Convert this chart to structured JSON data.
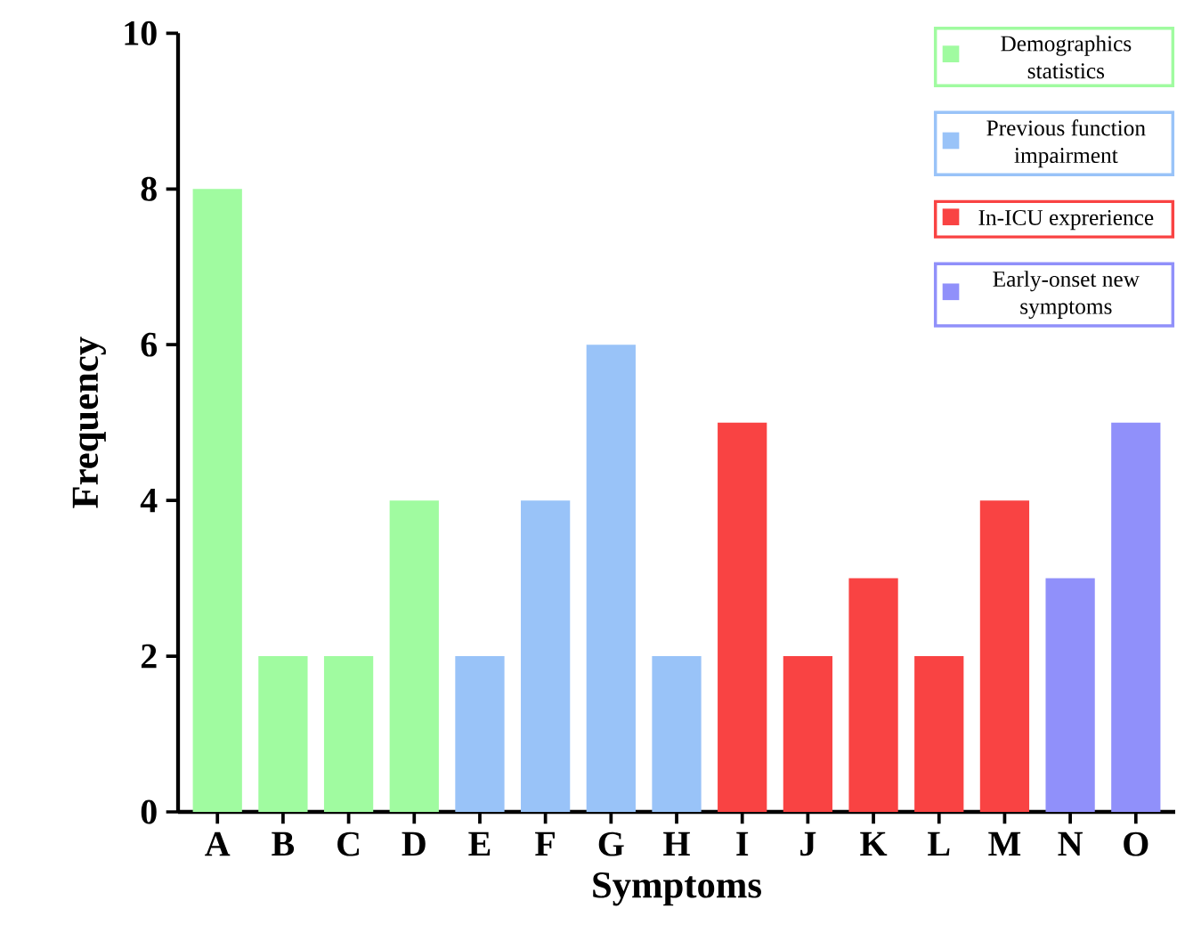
{
  "chart_data": {
    "type": "bar",
    "xlabel": "Symptoms",
    "ylabel": "Frequency",
    "categories": [
      "A",
      "B",
      "C",
      "D",
      "E",
      "F",
      "G",
      "H",
      "I",
      "J",
      "K",
      "L",
      "M",
      "N",
      "O"
    ],
    "series": [
      {
        "name": "Demographics statistics",
        "color": "#a0fba0",
        "values": [
          8,
          2,
          2,
          4,
          null,
          null,
          null,
          null,
          null,
          null,
          null,
          null,
          null,
          null,
          null
        ]
      },
      {
        "name": "Previous function impairment",
        "color": "#99c3f8",
        "values": [
          null,
          null,
          null,
          null,
          2,
          4,
          6,
          2,
          null,
          null,
          null,
          null,
          null,
          null,
          null
        ]
      },
      {
        "name": "In-ICU exprerience",
        "color": "#f94343",
        "values": [
          null,
          null,
          null,
          null,
          null,
          null,
          null,
          null,
          5,
          2,
          3,
          2,
          4,
          null,
          null
        ]
      },
      {
        "name": "Early-onset new symptoms",
        "color": "#9090fa",
        "values": [
          null,
          null,
          null,
          null,
          null,
          null,
          null,
          null,
          null,
          null,
          null,
          null,
          null,
          3,
          5
        ]
      }
    ],
    "ylim": [
      0,
      10
    ],
    "yticks": [
      0,
      2,
      4,
      6,
      8,
      10
    ],
    "grid": false,
    "legend": "top right"
  }
}
